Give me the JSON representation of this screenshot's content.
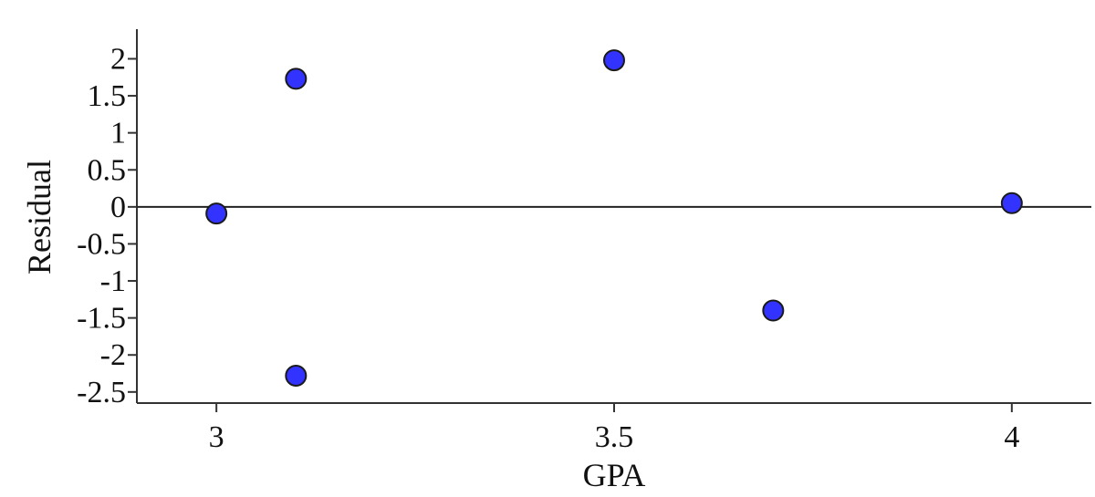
{
  "chart_data": {
    "type": "scatter",
    "xlabel": "GPA",
    "ylabel": "Residual",
    "xlim": [
      2.9,
      4.1
    ],
    "ylim": [
      -2.65,
      2.4
    ],
    "x_ticks": [
      3,
      3.5,
      4
    ],
    "x_tick_labels": [
      "3",
      "3.5",
      "4"
    ],
    "y_ticks": [
      2,
      1.5,
      1,
      0.5,
      0,
      -0.5,
      -1,
      -1.5,
      -2,
      -2.5
    ],
    "y_tick_labels": [
      "2",
      "1.5",
      "1",
      "0.5",
      "0",
      "-0.5",
      "-1",
      "-1.5",
      "-2",
      "-2.5"
    ],
    "reference_line_y": 0,
    "grid": false,
    "point_color": "#3333ff",
    "points": [
      {
        "x": 3.0,
        "y": -0.09
      },
      {
        "x": 3.1,
        "y": 1.73
      },
      {
        "x": 3.1,
        "y": -2.28
      },
      {
        "x": 3.5,
        "y": 1.98
      },
      {
        "x": 3.7,
        "y": -1.4
      },
      {
        "x": 4.0,
        "y": 0.05
      }
    ]
  }
}
